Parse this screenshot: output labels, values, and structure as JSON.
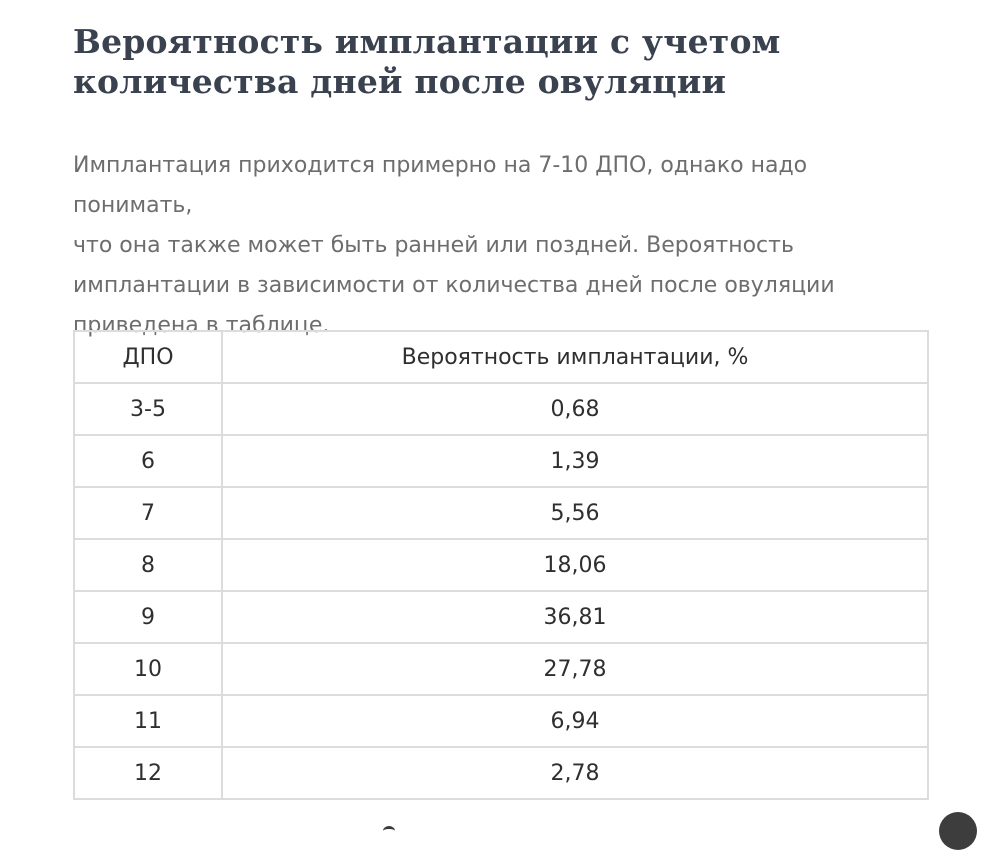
{
  "article": {
    "title_line1": "Вероятность имплантации с учетом",
    "title_line2": "количества дней после овуляции",
    "intro_line1": "Имплантация приходится примерно на 7-10 ДПО, однако надо понимать,",
    "intro_line2": "что она также может быть ранней или поздней. Вероятность",
    "intro_line3": "имплантации в зависимости от количества дней после овуляции",
    "intro_line4": "приведена в таблице."
  },
  "table": {
    "headers": [
      "ДПО",
      "Вероятность имплантации, %"
    ],
    "rows": [
      [
        "3-5",
        "0,68"
      ],
      [
        "6",
        "1,39"
      ],
      [
        "7",
        "5,56"
      ],
      [
        "8",
        "18,06"
      ],
      [
        "9",
        "36,81"
      ],
      [
        "10",
        "27,78"
      ],
      [
        "11",
        "6,94"
      ],
      [
        "12",
        "2,78"
      ]
    ]
  },
  "colors": {
    "title": "#3a4250",
    "body_text": "#6d6d6d",
    "table_text": "#2f2f2f",
    "table_border": "#dcdcdc",
    "fab": "#3d3d3d"
  }
}
